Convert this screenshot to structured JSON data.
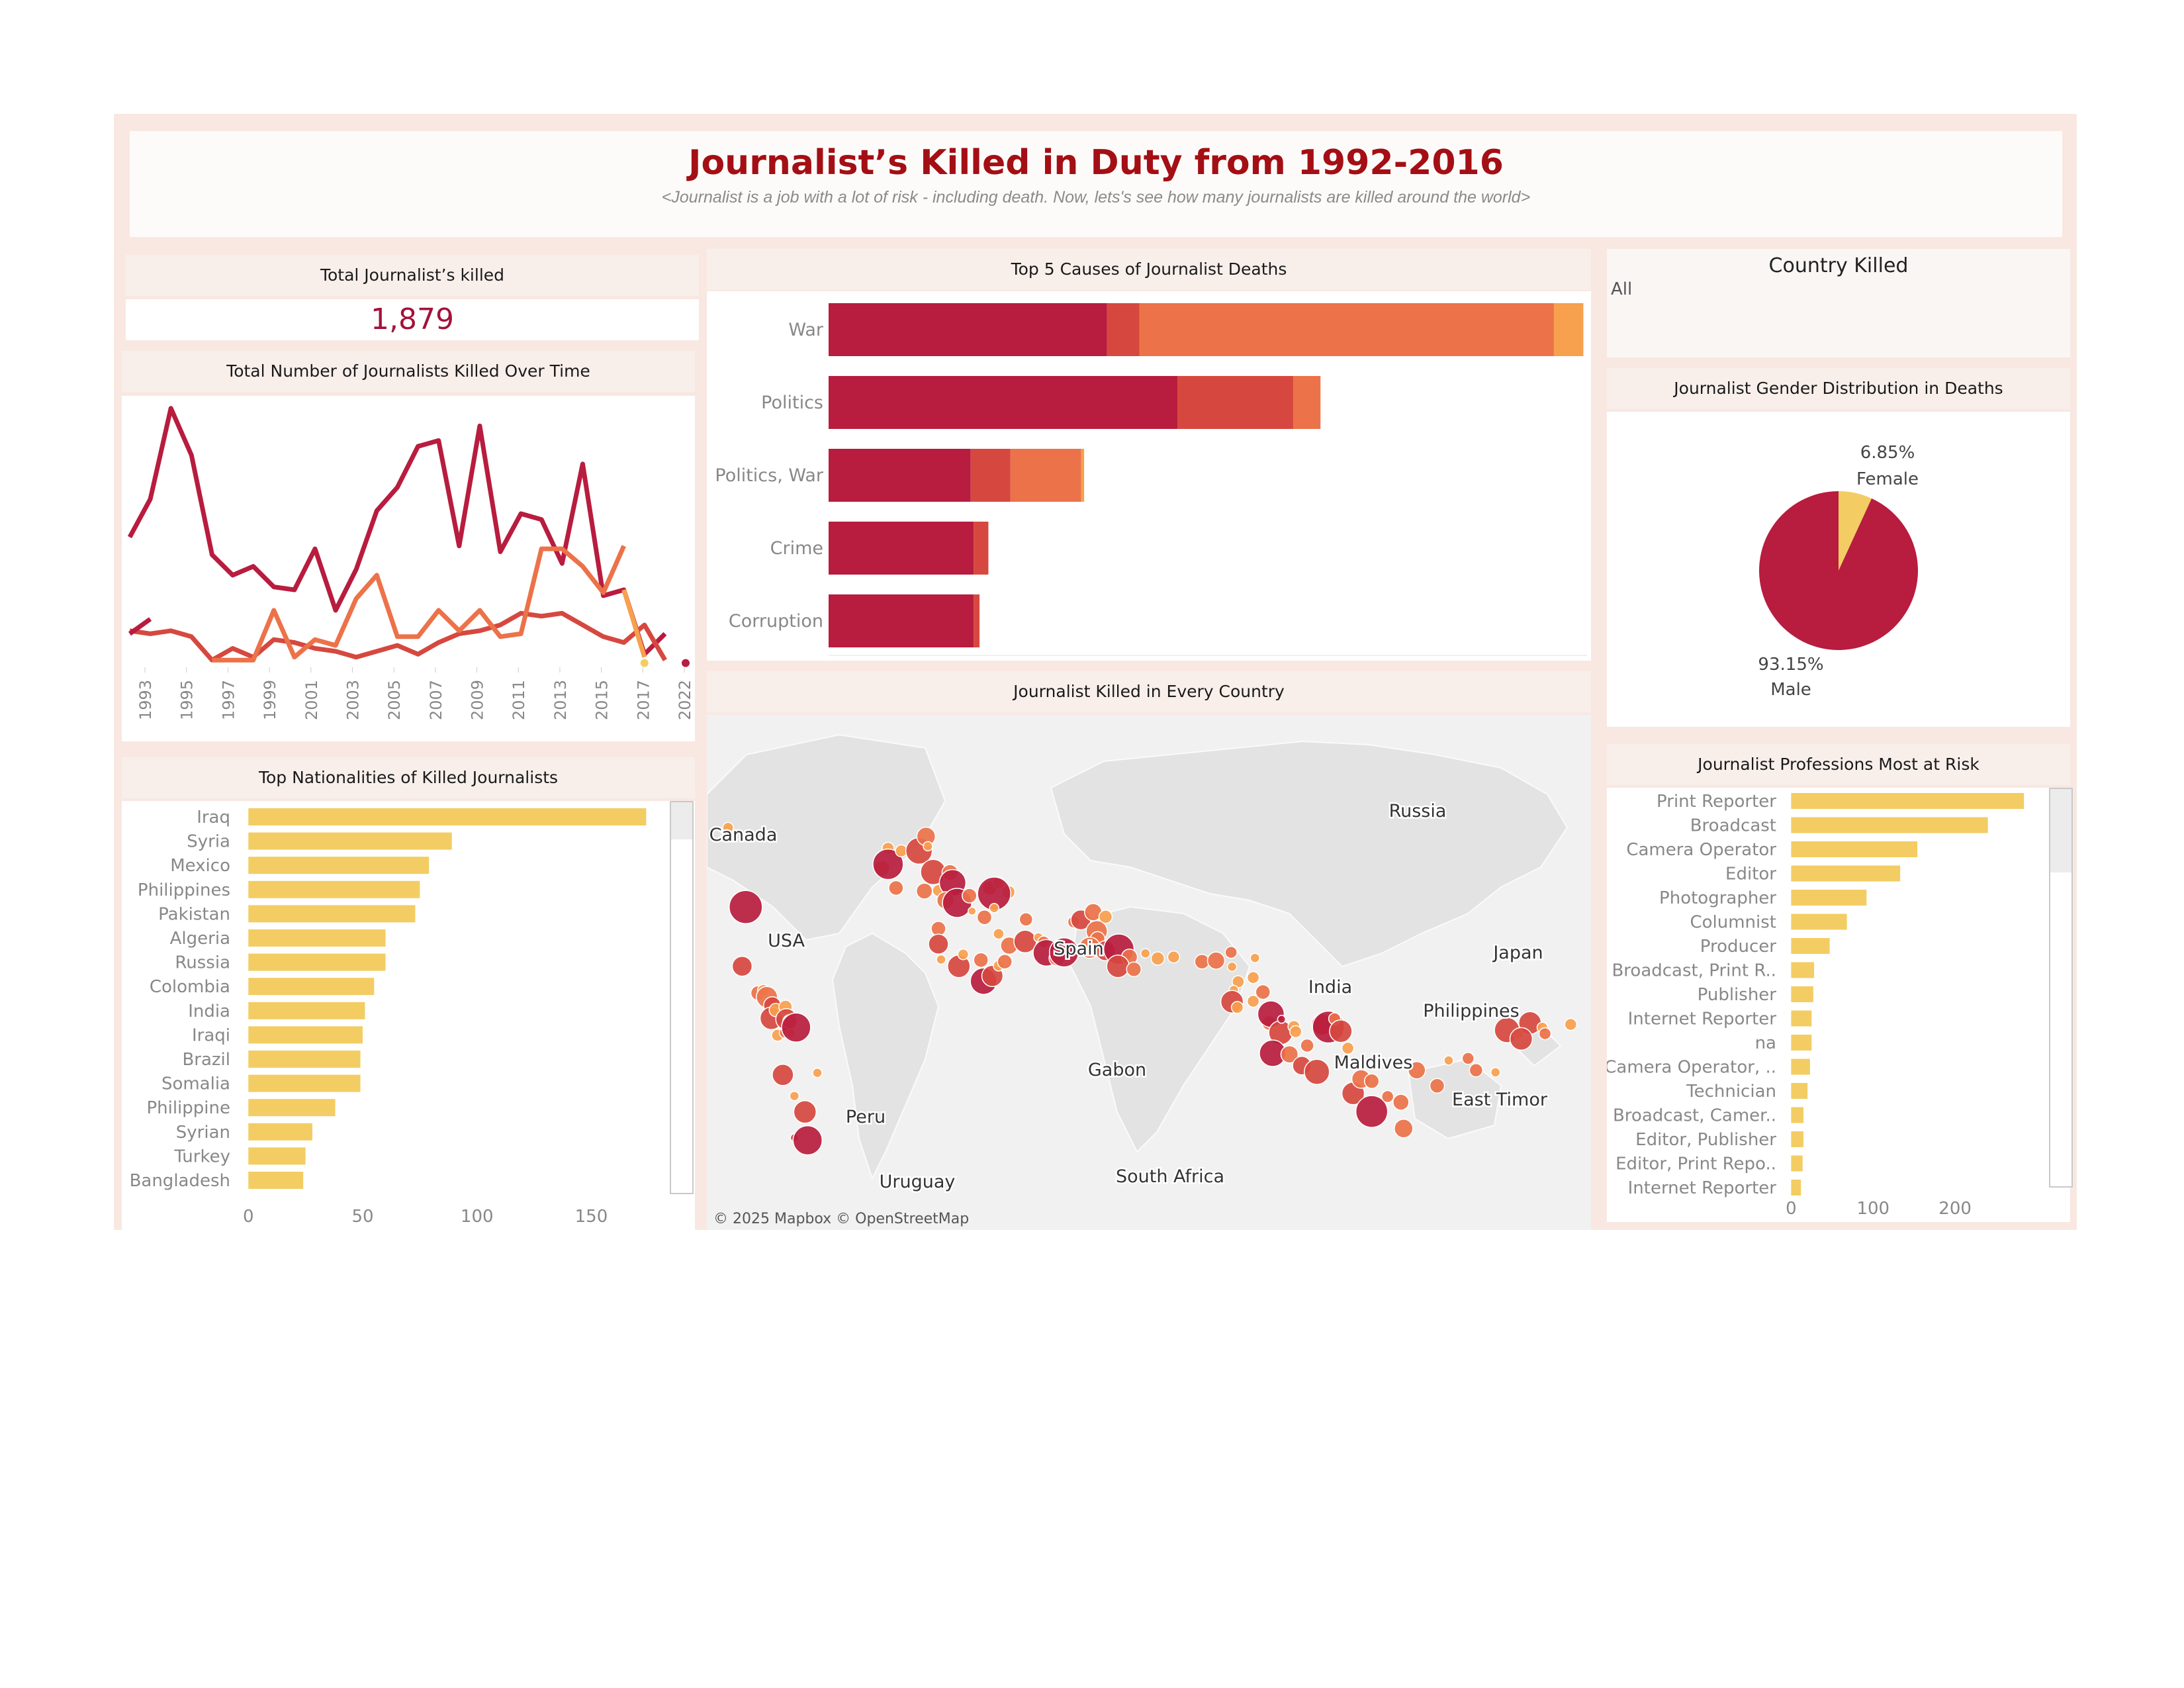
{
  "title": "Journalist’s Killed in Duty from 1992-2016",
  "subtitle": "<Journalist is a job with a lot of risk - including death. Now, lets's see how many journalists are killed around the world>",
  "kpi": {
    "label": "Total Journalist’s killed",
    "value": "1,879"
  },
  "filter": {
    "label": "Country Killed",
    "value": "All"
  },
  "colors": {
    "dark": "#b81c3e",
    "mid": "#d6483f",
    "light": "#ec7249",
    "orange": "#f7a04d",
    "yellow": "#f3cd63"
  },
  "chart_data": [
    {
      "id": "time",
      "type": "line",
      "title": "Total Number of Journalists Killed Over Time",
      "x_tick_labels": [
        "1993",
        "1995",
        "1997",
        "1999",
        "2001",
        "2003",
        "2005",
        "2007",
        "2009",
        "2011",
        "2013",
        "2015",
        "2017",
        "2022"
      ],
      "series": [
        {
          "color": "#b81c3e",
          "points": [
            [
              1992,
              44
            ],
            [
              1993,
              57
            ],
            [
              1994,
              88
            ],
            [
              1995,
              72
            ],
            [
              1996,
              38
            ],
            [
              1997,
              31
            ],
            [
              1998,
              34
            ],
            [
              1999,
              27
            ],
            [
              2000,
              26
            ],
            [
              2001,
              40
            ],
            [
              2002,
              19
            ],
            [
              2003,
              33
            ],
            [
              2004,
              53
            ],
            [
              2005,
              61
            ],
            [
              2006,
              75
            ],
            [
              2007,
              77
            ],
            [
              2008,
              41
            ],
            [
              2009,
              82
            ],
            [
              2010,
              39
            ],
            [
              2011,
              52
            ],
            [
              2012,
              50
            ],
            [
              2013,
              35
            ],
            [
              2014,
              69
            ],
            [
              2015,
              24
            ],
            [
              2016,
              26
            ],
            [
              2017,
              4
            ],
            [
              2018,
              11
            ]
          ]
        },
        {
          "color": "#d6483f",
          "points": [
            [
              1992,
              12
            ],
            [
              1993,
              11
            ],
            [
              1994,
              12
            ],
            [
              1995,
              10
            ],
            [
              1996,
              2
            ],
            [
              1997,
              6
            ],
            [
              1998,
              3
            ],
            [
              1999,
              9
            ],
            [
              2000,
              8
            ],
            [
              2001,
              6
            ],
            [
              2002,
              5
            ],
            [
              2003,
              3
            ],
            [
              2004,
              5
            ],
            [
              2005,
              7
            ],
            [
              2006,
              4
            ],
            [
              2007,
              8
            ],
            [
              2008,
              11
            ],
            [
              2009,
              12
            ],
            [
              2010,
              14
            ],
            [
              2011,
              18
            ],
            [
              2012,
              17
            ],
            [
              2013,
              18
            ],
            [
              2014,
              14
            ],
            [
              2015,
              10
            ],
            [
              2016,
              8
            ],
            [
              2017,
              14
            ],
            [
              2018,
              2
            ]
          ]
        },
        {
          "color": "#ec7249",
          "points": [
            [
              1996,
              2
            ],
            [
              1997,
              2
            ],
            [
              1998,
              2
            ],
            [
              1999,
              19
            ],
            [
              2000,
              3
            ],
            [
              2001,
              9
            ],
            [
              2002,
              7
            ],
            [
              2003,
              23
            ],
            [
              2004,
              31
            ],
            [
              2005,
              10
            ],
            [
              2006,
              10
            ],
            [
              2007,
              19
            ],
            [
              2008,
              12
            ],
            [
              2009,
              19
            ],
            [
              2010,
              10
            ],
            [
              2011,
              11
            ],
            [
              2012,
              40
            ],
            [
              2013,
              40
            ],
            [
              2014,
              34
            ],
            [
              2015,
              25
            ],
            [
              2016,
              41
            ]
          ]
        },
        {
          "color": "#f7a04d",
          "points": [
            [
              2016,
              26
            ],
            [
              2017,
              3
            ]
          ]
        },
        {
          "color": "#b81c3e",
          "points": [
            [
              1992,
              11
            ],
            [
              1993,
              16
            ]
          ]
        }
      ],
      "dots": [
        {
          "x": 2017,
          "y": 1,
          "color": "#f3cd63"
        },
        {
          "x": 2019,
          "y": 1,
          "color": "#b81c3e"
        }
      ],
      "xlim": [
        1992,
        2019
      ],
      "ylim": [
        0,
        90
      ]
    },
    {
      "id": "causes",
      "type": "bar",
      "title": "Top 5 Causes of Journalist Deaths",
      "orientation": "horizontal-stacked",
      "categories": [
        "War",
        "Politics",
        "Politics, War",
        "Crime",
        "Corruption"
      ],
      "segments": [
        [
          {
            "value": 378,
            "color": "#b81c3e"
          },
          {
            "value": 44,
            "color": "#d6483f"
          },
          {
            "value": 563,
            "color": "#ec7249"
          },
          {
            "value": 40,
            "color": "#f7a04d"
          }
        ],
        [
          {
            "value": 474,
            "color": "#b81c3e"
          },
          {
            "value": 157,
            "color": "#d6483f"
          },
          {
            "value": 37,
            "color": "#ec7249"
          }
        ],
        [
          {
            "value": 193,
            "color": "#b81c3e"
          },
          {
            "value": 54,
            "color": "#d6483f"
          },
          {
            "value": 96,
            "color": "#ec7249"
          },
          {
            "value": 4,
            "color": "#f7a04d"
          }
        ],
        [
          {
            "value": 197,
            "color": "#b81c3e"
          },
          {
            "value": 20,
            "color": "#d6483f"
          }
        ],
        [
          {
            "value": 197,
            "color": "#b81c3e"
          },
          {
            "value": 8,
            "color": "#d6483f"
          }
        ]
      ],
      "xlim": [
        0,
        1030
      ]
    },
    {
      "id": "gender",
      "type": "pie",
      "title": "Journalist Gender Distribution in Deaths",
      "slices": [
        {
          "label": "Female",
          "value": 6.85,
          "display": "6.85%",
          "color": "#f3cd63"
        },
        {
          "label": "Male",
          "value": 93.15,
          "display": "93.15%",
          "color": "#b81c3e"
        }
      ]
    },
    {
      "id": "nationalities",
      "type": "bar",
      "title": "Top Nationalities of Killed Journalists",
      "orientation": "horizontal",
      "categories": [
        "Iraq",
        "Syria",
        "Mexico",
        "Philippines",
        "Pakistan",
        "Algeria",
        "Russia",
        "Colombia",
        "India",
        "Iraqi",
        "Brazil",
        "Somalia",
        "Philippine",
        "Syrian",
        "Turkey",
        "Bangladesh"
      ],
      "values": [
        174,
        89,
        79,
        75,
        73,
        60,
        60,
        55,
        51,
        50,
        49,
        49,
        38,
        28,
        25,
        24
      ],
      "x_ticks": [
        0,
        50,
        100,
        150
      ],
      "xlim": [
        -5,
        182
      ],
      "color": "#f3cd63"
    },
    {
      "id": "professions",
      "type": "bar",
      "title": "Journalist Professions Most at Risk",
      "orientation": "horizontal",
      "categories": [
        "Print Reporter",
        "Broadcast",
        "Camera Operator",
        "Editor",
        "Photographer",
        "Columnist",
        "Producer",
        "Broadcast, Print R..",
        "Publisher",
        "Internet Reporter",
        "na",
        "Camera Operator, ..",
        "Technician",
        "Broadcast, Camer..",
        "Editor, Publisher",
        "Editor, Print Repo..",
        "Internet Reporter"
      ],
      "values": [
        284,
        240,
        154,
        133,
        92,
        68,
        47,
        28,
        27,
        25,
        25,
        23,
        20,
        15,
        15,
        14,
        12
      ],
      "x_ticks": [
        0,
        100,
        200
      ],
      "xlim": [
        -10,
        300
      ],
      "color": "#f3cd63"
    },
    {
      "id": "map",
      "type": "scatter",
      "title": "Journalist Killed in Every Country",
      "attribution": "© 2025 Mapbox © OpenStreetMap",
      "labels": [
        "Canada",
        "USA",
        "Peru",
        "Uruguay",
        "Spain",
        "Gabon",
        "South Africa",
        "Russia",
        "India",
        "Maldives",
        "Philippines",
        "East Timor",
        "Japan"
      ]
    }
  ]
}
